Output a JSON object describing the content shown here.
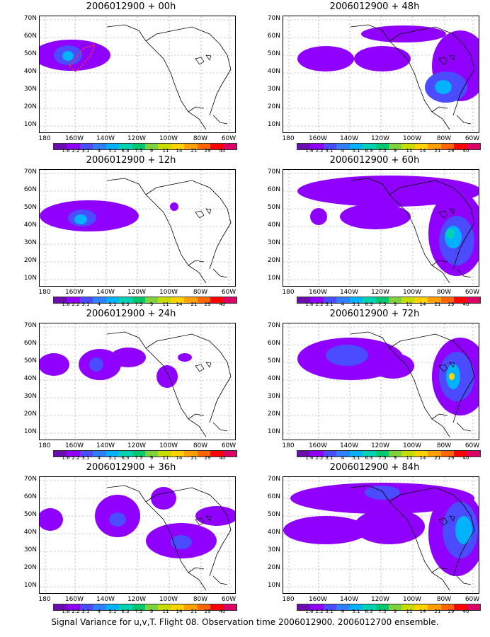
{
  "caption": "Signal Variance for u,v,T. Flight 08. Observation time 2006012900. 2006012700 ensemble.",
  "lat_labels": [
    "70N",
    "60N",
    "50N",
    "40N",
    "30N",
    "20N",
    "10N"
  ],
  "lon_labels": [
    "180",
    "160W",
    "140W",
    "120W",
    "100W",
    "80W",
    "60W"
  ],
  "colorbar": {
    "colors": [
      "#6a0dad",
      "#8f00ff",
      "#4b4bff",
      "#2f7fff",
      "#00b2ff",
      "#00d2b4",
      "#00c86e",
      "#7fd23c",
      "#c8dc00",
      "#ffd200",
      "#ffa000",
      "#ff6400",
      "#ff0000",
      "#dc0064"
    ],
    "labels": [
      "1.6",
      "2.2",
      "3.1",
      "4",
      "5.1",
      "6.3",
      "7.5",
      "9",
      "11",
      "14",
      "21",
      "29",
      "40"
    ]
  },
  "panels": [
    {
      "title": "2006012900 + 00h",
      "icon": "map-00h"
    },
    {
      "title": "2006012900 + 48h",
      "icon": "map-48h"
    },
    {
      "title": "2006012900 + 12h",
      "icon": "map-12h"
    },
    {
      "title": "2006012900 + 60h",
      "icon": "map-60h"
    },
    {
      "title": "2006012900 + 24h",
      "icon": "map-24h"
    },
    {
      "title": "2006012900 + 72h",
      "icon": "map-72h"
    },
    {
      "title": "2006012900 + 36h",
      "icon": "map-36h"
    },
    {
      "title": "2006012900 + 84h",
      "icon": "map-84h"
    }
  ]
}
